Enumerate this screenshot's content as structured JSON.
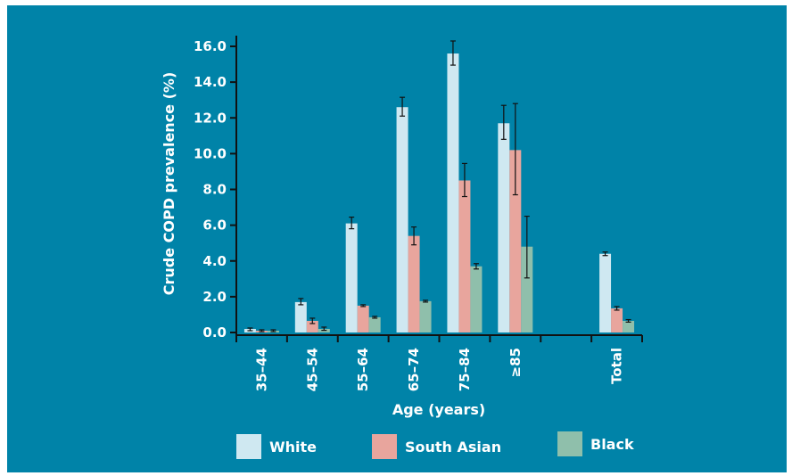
{
  "chart_data": {
    "type": "bar",
    "xlabel": "Age (years)",
    "ylabel": "Crude COPD prevalence (%)",
    "ylim": [
      0,
      16.0
    ],
    "yticks": [
      "0.0",
      "2.0",
      "4.0",
      "6.0",
      "8.0",
      "10.0",
      "12.0",
      "14.0",
      "16.0"
    ],
    "categories": [
      "35–44",
      "45–54",
      "55–64",
      "65–74",
      "75–84",
      "≥85",
      "",
      "Total"
    ],
    "series": [
      {
        "name": "White",
        "color": "#cfe8f1",
        "values": [
          0.2,
          1.7,
          6.1,
          12.6,
          15.6,
          11.7,
          null,
          4.4
        ],
        "err_low": [
          0.1,
          1.55,
          5.8,
          12.1,
          14.95,
          10.8,
          null,
          4.3
        ],
        "err_high": [
          0.25,
          1.9,
          6.45,
          13.15,
          16.3,
          12.7,
          null,
          4.5
        ]
      },
      {
        "name": "South Asian",
        "color": "#e8a59d",
        "values": [
          0.1,
          0.65,
          1.5,
          5.4,
          8.5,
          10.2,
          null,
          1.35
        ],
        "err_low": [
          0.05,
          0.5,
          1.45,
          4.9,
          7.6,
          7.7,
          null,
          1.25
        ],
        "err_high": [
          0.15,
          0.8,
          1.55,
          5.9,
          9.45,
          12.8,
          null,
          1.45
        ]
      },
      {
        "name": "Black",
        "color": "#8fbfab",
        "values": [
          0.1,
          0.2,
          0.85,
          1.75,
          3.7,
          4.8,
          null,
          0.65
        ],
        "err_low": [
          0.05,
          0.12,
          0.8,
          1.7,
          3.55,
          3.05,
          null,
          0.58
        ],
        "err_high": [
          0.15,
          0.3,
          0.9,
          1.8,
          3.85,
          6.5,
          null,
          0.72
        ]
      }
    ],
    "legend_position": "bottom",
    "grid": false
  }
}
